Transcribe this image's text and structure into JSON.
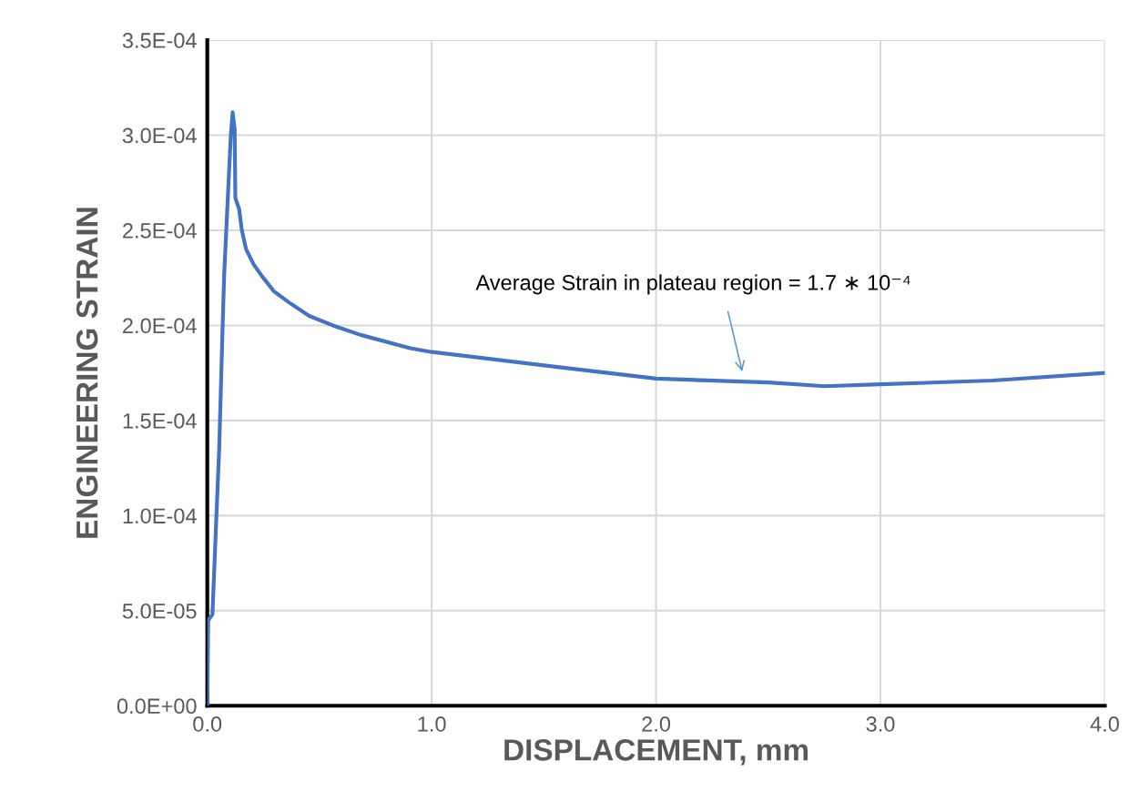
{
  "chart_data": {
    "type": "line",
    "xlabel": "DISPLACEMENT, mm",
    "ylabel": "ENGINEERING STRAIN",
    "x": [
      0,
      0.004,
      0.023,
      0.04,
      0.053,
      0.067,
      0.075,
      0.093,
      0.105,
      0.113,
      0.122,
      0.125,
      0.142,
      0.154,
      0.173,
      0.207,
      0.243,
      0.296,
      0.365,
      0.454,
      0.559,
      0.683,
      0.904,
      1.0,
      1.5,
      2.0,
      2.5,
      2.75,
      3.0,
      3.5,
      4.0
    ],
    "series": [
      {
        "color": "#4472c4",
        "values": [
          0,
          4.5e-05,
          4.8e-05,
          9.8e-05,
          0.000135,
          0.000194,
          0.000226,
          0.000271,
          0.0003,
          0.000312,
          0.000303,
          0.000267,
          0.000261,
          0.00025,
          0.00024,
          0.000232,
          0.000226,
          0.000218,
          0.000212,
          0.000205,
          0.0002,
          0.000195,
          0.000188,
          0.000186,
          0.000179,
          0.000172,
          0.00017,
          0.000168,
          0.000169,
          0.000171,
          0.000175
        ]
      }
    ],
    "xlim": [
      0,
      4
    ],
    "xticks": [
      {
        "value": 0,
        "label": "0.0"
      },
      {
        "value": 1,
        "label": "1.0"
      },
      {
        "value": 2,
        "label": "2.0"
      },
      {
        "value": 3,
        "label": "3.0"
      },
      {
        "value": 4,
        "label": "4.0"
      }
    ],
    "ylim": [
      0,
      0.00035
    ],
    "yticks": [
      {
        "value": 0,
        "label": "0.0E+00"
      },
      {
        "value": 5e-05,
        "label": "5.0E-05"
      },
      {
        "value": 0.0001,
        "label": "1.0E-04"
      },
      {
        "value": 0.00015,
        "label": "1.5E-04"
      },
      {
        "value": 0.0002,
        "label": "2.0E-04"
      },
      {
        "value": 0.00025,
        "label": "2.5E-04"
      },
      {
        "value": 0.0003,
        "label": "3.0E-04"
      },
      {
        "value": 0.00035,
        "label": "3.5E-04"
      }
    ],
    "grid": true,
    "legend": false,
    "marker": "none",
    "line_style": "solid",
    "annotations": [
      "Average Strain in plateau region = 1.7 ∗ 10⁻⁴"
    ]
  }
}
